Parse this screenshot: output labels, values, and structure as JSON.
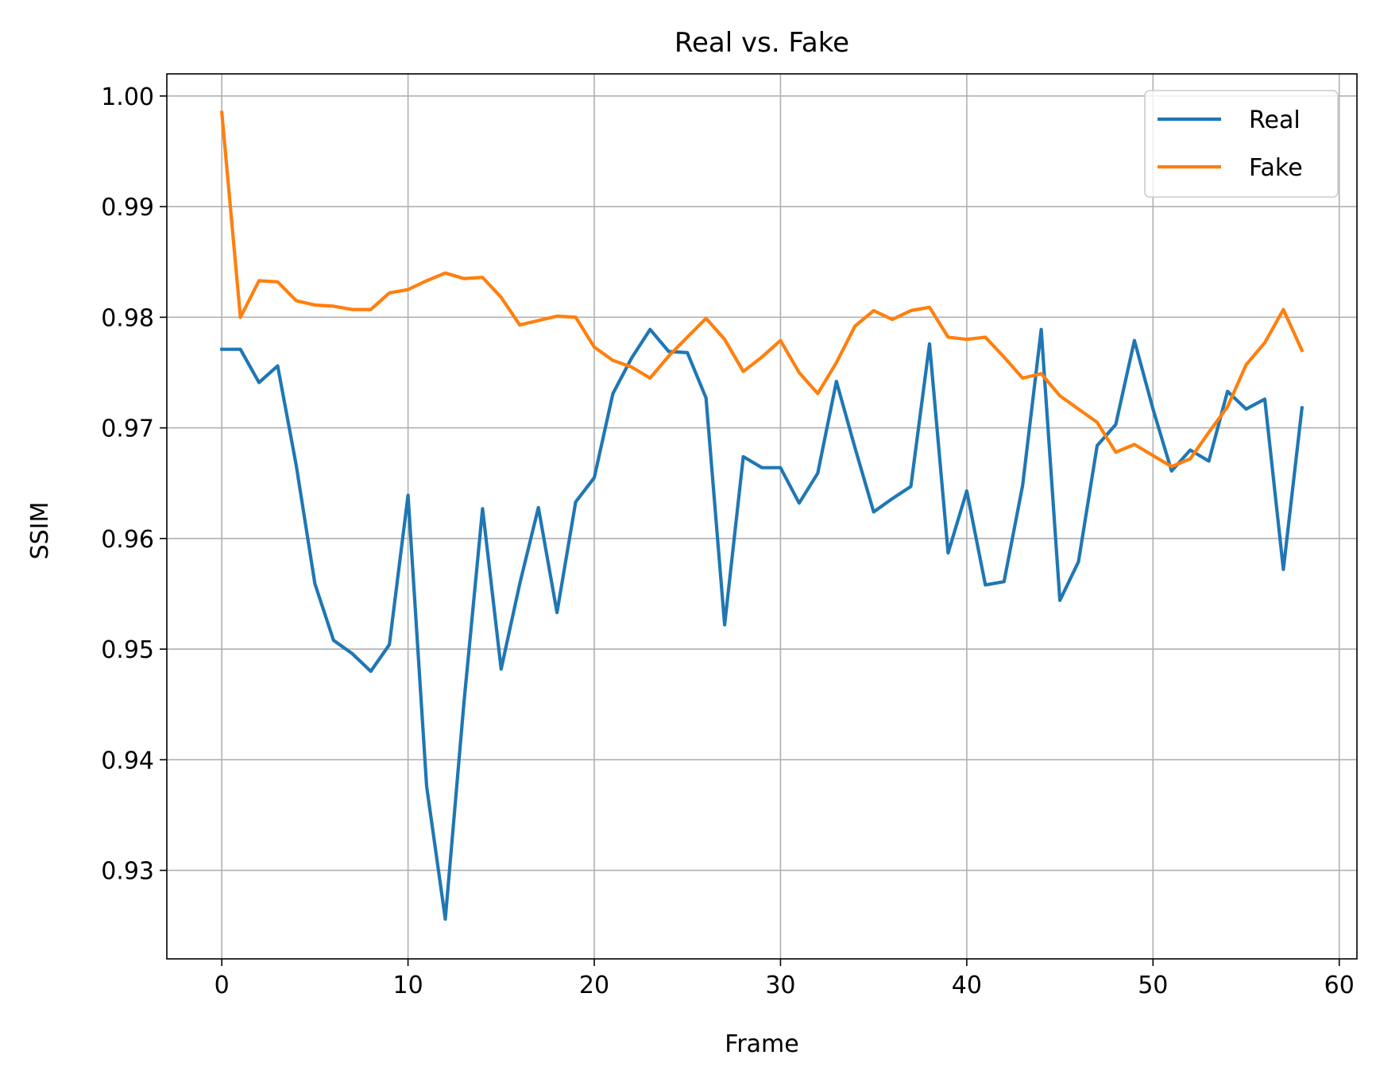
{
  "chart_data": {
    "type": "line",
    "title": "Real vs. Fake",
    "xlabel": "Frame",
    "ylabel": "SSIM",
    "xlim": [
      -2.95,
      60.95
    ],
    "ylim": [
      0.922,
      1.002
    ],
    "xticks": [
      0,
      10,
      20,
      30,
      40,
      50,
      60
    ],
    "yticks": [
      0.93,
      0.94,
      0.95,
      0.96,
      0.97,
      0.98,
      0.99,
      1.0
    ],
    "xtick_labels": [
      "0",
      "10",
      "20",
      "30",
      "40",
      "50",
      "60"
    ],
    "ytick_labels": [
      "0.93",
      "0.94",
      "0.95",
      "0.96",
      "0.97",
      "0.98",
      "0.99",
      "1.00"
    ],
    "grid": true,
    "legend_position": "top-right",
    "series": [
      {
        "name": "Real",
        "color": "#1f77b4",
        "x": [
          0,
          1,
          2,
          3,
          4,
          5,
          6,
          7,
          8,
          9,
          10,
          11,
          12,
          13,
          14,
          15,
          16,
          17,
          18,
          19,
          20,
          21,
          22,
          23,
          24,
          25,
          26,
          27,
          28,
          29,
          30,
          31,
          32,
          33,
          34,
          35,
          36,
          37,
          38,
          39,
          40,
          41,
          42,
          43,
          44,
          45,
          46,
          47,
          48,
          49,
          50,
          51,
          52,
          53,
          54,
          55,
          56,
          57,
          58
        ],
        "values": [
          0.9771,
          0.9771,
          0.9741,
          0.9756,
          0.9666,
          0.9559,
          0.9508,
          0.9496,
          0.948,
          0.9504,
          0.9639,
          0.9376,
          0.9256,
          0.9451,
          0.9627,
          0.9482,
          0.9559,
          0.9628,
          0.9533,
          0.9633,
          0.9655,
          0.9731,
          0.9763,
          0.9789,
          0.9769,
          0.9768,
          0.9727,
          0.9522,
          0.9674,
          0.9664,
          0.9664,
          0.9632,
          0.9659,
          0.9742,
          0.9682,
          0.9624,
          0.9636,
          0.9647,
          0.9776,
          0.9587,
          0.9643,
          0.9558,
          0.9561,
          0.9648,
          0.9789,
          0.9544,
          0.9579,
          0.9684,
          0.9703,
          0.9779,
          0.9717,
          0.9661,
          0.968,
          0.967,
          0.9733,
          0.9717,
          0.9726,
          0.9572,
          0.9718
        ]
      },
      {
        "name": "Fake",
        "color": "#ff7f0e",
        "x": [
          0,
          1,
          2,
          3,
          4,
          5,
          6,
          7,
          8,
          9,
          10,
          11,
          12,
          13,
          14,
          15,
          16,
          17,
          18,
          19,
          20,
          21,
          22,
          23,
          24,
          25,
          26,
          27,
          28,
          29,
          30,
          31,
          32,
          33,
          34,
          35,
          36,
          37,
          38,
          39,
          40,
          41,
          42,
          43,
          44,
          45,
          46,
          47,
          48,
          49,
          50,
          51,
          52,
          53,
          54,
          55,
          56,
          57,
          58
        ],
        "values": [
          0.9985,
          0.98,
          0.9833,
          0.9832,
          0.9815,
          0.9811,
          0.981,
          0.9807,
          0.9807,
          0.9822,
          0.9825,
          0.9833,
          0.984,
          0.9835,
          0.9836,
          0.9818,
          0.9793,
          0.9797,
          0.9801,
          0.98,
          0.9773,
          0.9761,
          0.9755,
          0.9745,
          0.9765,
          0.9782,
          0.9799,
          0.978,
          0.9751,
          0.9764,
          0.9779,
          0.975,
          0.9731,
          0.9759,
          0.9792,
          0.9806,
          0.9798,
          0.9806,
          0.9809,
          0.9782,
          0.978,
          0.9782,
          0.9764,
          0.9745,
          0.9749,
          0.9729,
          0.9717,
          0.9705,
          0.9678,
          0.9685,
          0.9675,
          0.9665,
          0.9672,
          0.9696,
          0.9719,
          0.9757,
          0.9777,
          0.9807,
          0.977
        ]
      }
    ]
  }
}
